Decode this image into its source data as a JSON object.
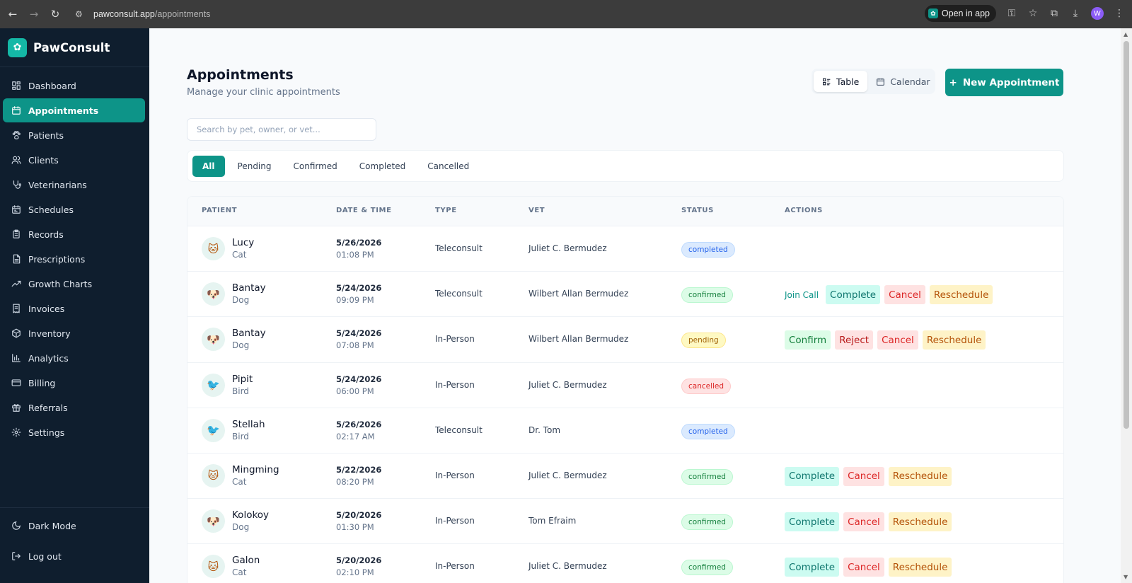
{
  "browser": {
    "url_host": "pawconsult.app",
    "url_path": "/appointments",
    "open_in_app": "Open in app",
    "profile_initial": "W"
  },
  "sidebar": {
    "brand": "PawConsult",
    "items": [
      {
        "label": "Dashboard",
        "icon": "dashboard-icon",
        "active": false
      },
      {
        "label": "Appointments",
        "icon": "calendar-icon",
        "active": true
      },
      {
        "label": "Patients",
        "icon": "paw-icon",
        "active": false
      },
      {
        "label": "Clients",
        "icon": "users-icon",
        "active": false
      },
      {
        "label": "Veterinarians",
        "icon": "stethoscope-icon",
        "active": false
      },
      {
        "label": "Schedules",
        "icon": "schedule-icon",
        "active": false
      },
      {
        "label": "Records",
        "icon": "clipboard-icon",
        "active": false
      },
      {
        "label": "Prescriptions",
        "icon": "document-icon",
        "active": false
      },
      {
        "label": "Growth Charts",
        "icon": "trending-up-icon",
        "active": false
      },
      {
        "label": "Invoices",
        "icon": "receipt-icon",
        "active": false
      },
      {
        "label": "Inventory",
        "icon": "box-icon",
        "active": false
      },
      {
        "label": "Analytics",
        "icon": "bar-chart-icon",
        "active": false
      },
      {
        "label": "Billing",
        "icon": "credit-card-icon",
        "active": false
      },
      {
        "label": "Referrals",
        "icon": "gift-icon",
        "active": false
      },
      {
        "label": "Settings",
        "icon": "gear-icon",
        "active": false
      }
    ],
    "dark_mode": "Dark Mode",
    "logout": "Log out"
  },
  "header": {
    "title": "Appointments",
    "subtitle": "Manage your clinic appointments",
    "view_table": "Table",
    "view_calendar": "Calendar",
    "new_button": "New Appointment",
    "new_button_prefix": "+"
  },
  "search": {
    "placeholder": "Search by pet, owner, or vet...",
    "value": ""
  },
  "filters": [
    "All",
    "Pending",
    "Confirmed",
    "Completed",
    "Cancelled"
  ],
  "active_filter": "All",
  "table": {
    "columns": [
      "PATIENT",
      "DATE & TIME",
      "TYPE",
      "VET",
      "STATUS",
      "ACTIONS"
    ],
    "rows": [
      {
        "name": "Lucy",
        "species": "Cat",
        "emoji": "🐱",
        "date": "5/26/2026",
        "time": "01:08 PM",
        "type": "Teleconsult",
        "vet": "Juliet C. Bermudez",
        "status": "completed",
        "actions": []
      },
      {
        "name": "Bantay",
        "species": "Dog",
        "emoji": "🐶",
        "date": "5/24/2026",
        "time": "09:09 PM",
        "type": "Teleconsult",
        "vet": "Wilbert Allan Bermudez",
        "status": "confirmed",
        "actions": [
          "Join Call",
          "Complete",
          "Cancel",
          "Reschedule"
        ]
      },
      {
        "name": "Bantay",
        "species": "Dog",
        "emoji": "🐶",
        "date": "5/24/2026",
        "time": "07:08 PM",
        "type": "In-Person",
        "vet": "Wilbert Allan Bermudez",
        "status": "pending",
        "actions": [
          "Confirm",
          "Reject",
          "Cancel",
          "Reschedule"
        ]
      },
      {
        "name": "Pipit",
        "species": "Bird",
        "emoji": "🐦",
        "date": "5/24/2026",
        "time": "06:00 PM",
        "type": "In-Person",
        "vet": "Juliet C. Bermudez",
        "status": "cancelled",
        "actions": []
      },
      {
        "name": "Stellah",
        "species": "Bird",
        "emoji": "🐦",
        "date": "5/26/2026",
        "time": "02:17 AM",
        "type": "Teleconsult",
        "vet": "Dr. Tom",
        "status": "completed",
        "actions": []
      },
      {
        "name": "Mingming",
        "species": "Cat",
        "emoji": "🐱",
        "date": "5/22/2026",
        "time": "08:20 PM",
        "type": "In-Person",
        "vet": "Juliet C. Bermudez",
        "status": "confirmed",
        "actions": [
          "Complete",
          "Cancel",
          "Reschedule"
        ]
      },
      {
        "name": "Kolokoy",
        "species": "Dog",
        "emoji": "🐶",
        "date": "5/20/2026",
        "time": "01:30 PM",
        "type": "In-Person",
        "vet": "Tom Efraim",
        "status": "confirmed",
        "actions": [
          "Complete",
          "Cancel",
          "Reschedule"
        ]
      },
      {
        "name": "Galon",
        "species": "Cat",
        "emoji": "🐱",
        "date": "5/20/2026",
        "time": "02:10 PM",
        "type": "In-Person",
        "vet": "Juliet C. Bermudez",
        "status": "confirmed",
        "actions": [
          "Complete",
          "Cancel",
          "Reschedule"
        ]
      }
    ]
  },
  "colors": {
    "accent": "#0d9488",
    "sidebar_bg": "#0f1e2e"
  }
}
